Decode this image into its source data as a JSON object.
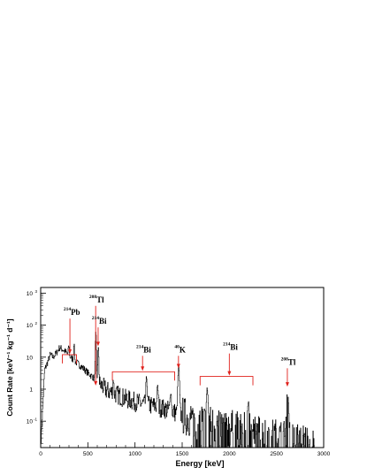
{
  "chart_data": {
    "type": "line",
    "title": "",
    "xlabel": "Energy [keV]",
    "ylabel": "Count Rate [keV⁻¹ kg⁻¹ d⁻¹]",
    "xlim": [
      0,
      3000
    ],
    "ylim": [
      0.015,
      1500
    ],
    "y_scale": "log",
    "x_ticks": [
      "0",
      "500",
      "1000",
      "1500",
      "2000",
      "2500",
      "3000"
    ],
    "y_ticks": [
      {
        "value": 0.1,
        "base": "10",
        "exp": "-1"
      },
      {
        "value": 1,
        "base": "1",
        "exp": ""
      },
      {
        "value": 10,
        "base": "10",
        "exp": ""
      },
      {
        "value": 100,
        "base": "10",
        "exp": "2"
      },
      {
        "value": 1000,
        "base": "10",
        "exp": "3"
      }
    ],
    "continuum": {
      "x": [
        0,
        40,
        80,
        100,
        130,
        160,
        200,
        260,
        300,
        350,
        400,
        450,
        500,
        550,
        600,
        650,
        700,
        800,
        900,
        1000,
        1100,
        1200,
        1300,
        1400,
        1500,
        1600,
        1700,
        1800,
        1900,
        2000,
        2100,
        2200,
        2300,
        2400,
        2500,
        2600,
        2700,
        2800,
        2900,
        3000
      ],
      "y": [
        0.02,
        4,
        8,
        12,
        10,
        13,
        20,
        15,
        11,
        8,
        6,
        4.5,
        3.2,
        2.4,
        1.6,
        1.25,
        0.9,
        0.7,
        0.5,
        0.4,
        0.33,
        0.3,
        0.25,
        0.2,
        0.15,
        0.12,
        0.1,
        0.08,
        0.07,
        0.06,
        0.05,
        0.045,
        0.04,
        0.035,
        0.03,
        0.028,
        0.025,
        0.022,
        0.02,
        0.018
      ]
    },
    "peaks": [
      {
        "energy": 295,
        "height": 12
      },
      {
        "energy": 352,
        "height": 18
      },
      {
        "energy": 583,
        "height": 60
      },
      {
        "energy": 609,
        "height": 18
      },
      {
        "energy": 768,
        "height": 1.2
      },
      {
        "energy": 1120,
        "height": 2
      },
      {
        "energy": 1238,
        "height": 0.9
      },
      {
        "energy": 1377,
        "height": 0.6
      },
      {
        "energy": 1461,
        "height": 5
      },
      {
        "energy": 1764,
        "height": 0.9
      },
      {
        "energy": 2204,
        "height": 0.4
      },
      {
        "energy": 2615,
        "height": 0.8
      }
    ],
    "annotations": [
      {
        "label": "Pb",
        "mass": "214",
        "arrow_x": 310,
        "arrow_y_top": 160,
        "arrow_y_tip": 38,
        "bracket": [
          230,
          380
        ],
        "bracket_y": 12
      },
      {
        "label": "Tl",
        "mass": "208",
        "arrow_x": 583,
        "arrow_y_top": 400,
        "arrow_y_tip": 1.3,
        "bracket": null
      },
      {
        "label": "Bi",
        "mass": "214",
        "arrow_x": 609,
        "arrow_y_top": 85,
        "arrow_y_tip": 22,
        "bracket": null
      },
      {
        "label": "Bi",
        "mass": "214",
        "arrow_x": 1080,
        "arrow_y_top": 11,
        "arrow_y_tip": 4,
        "bracket": [
          760,
          1420
        ],
        "bracket_y": 3.5
      },
      {
        "label": "K",
        "mass": "40",
        "arrow_x": 1461,
        "arrow_y_top": 11,
        "arrow_y_tip": 4.5,
        "bracket": null
      },
      {
        "label": "Bi",
        "mass": "214",
        "arrow_x": 2000,
        "arrow_y_top": 13,
        "arrow_y_tip": 3,
        "bracket": [
          1690,
          2250
        ],
        "bracket_y": 2.5
      },
      {
        "label": "Tl",
        "mass": "208",
        "arrow_x": 2615,
        "arrow_y_top": 4.5,
        "arrow_y_tip": 1.2,
        "bracket": null
      }
    ],
    "grid": false,
    "legend": "none"
  }
}
